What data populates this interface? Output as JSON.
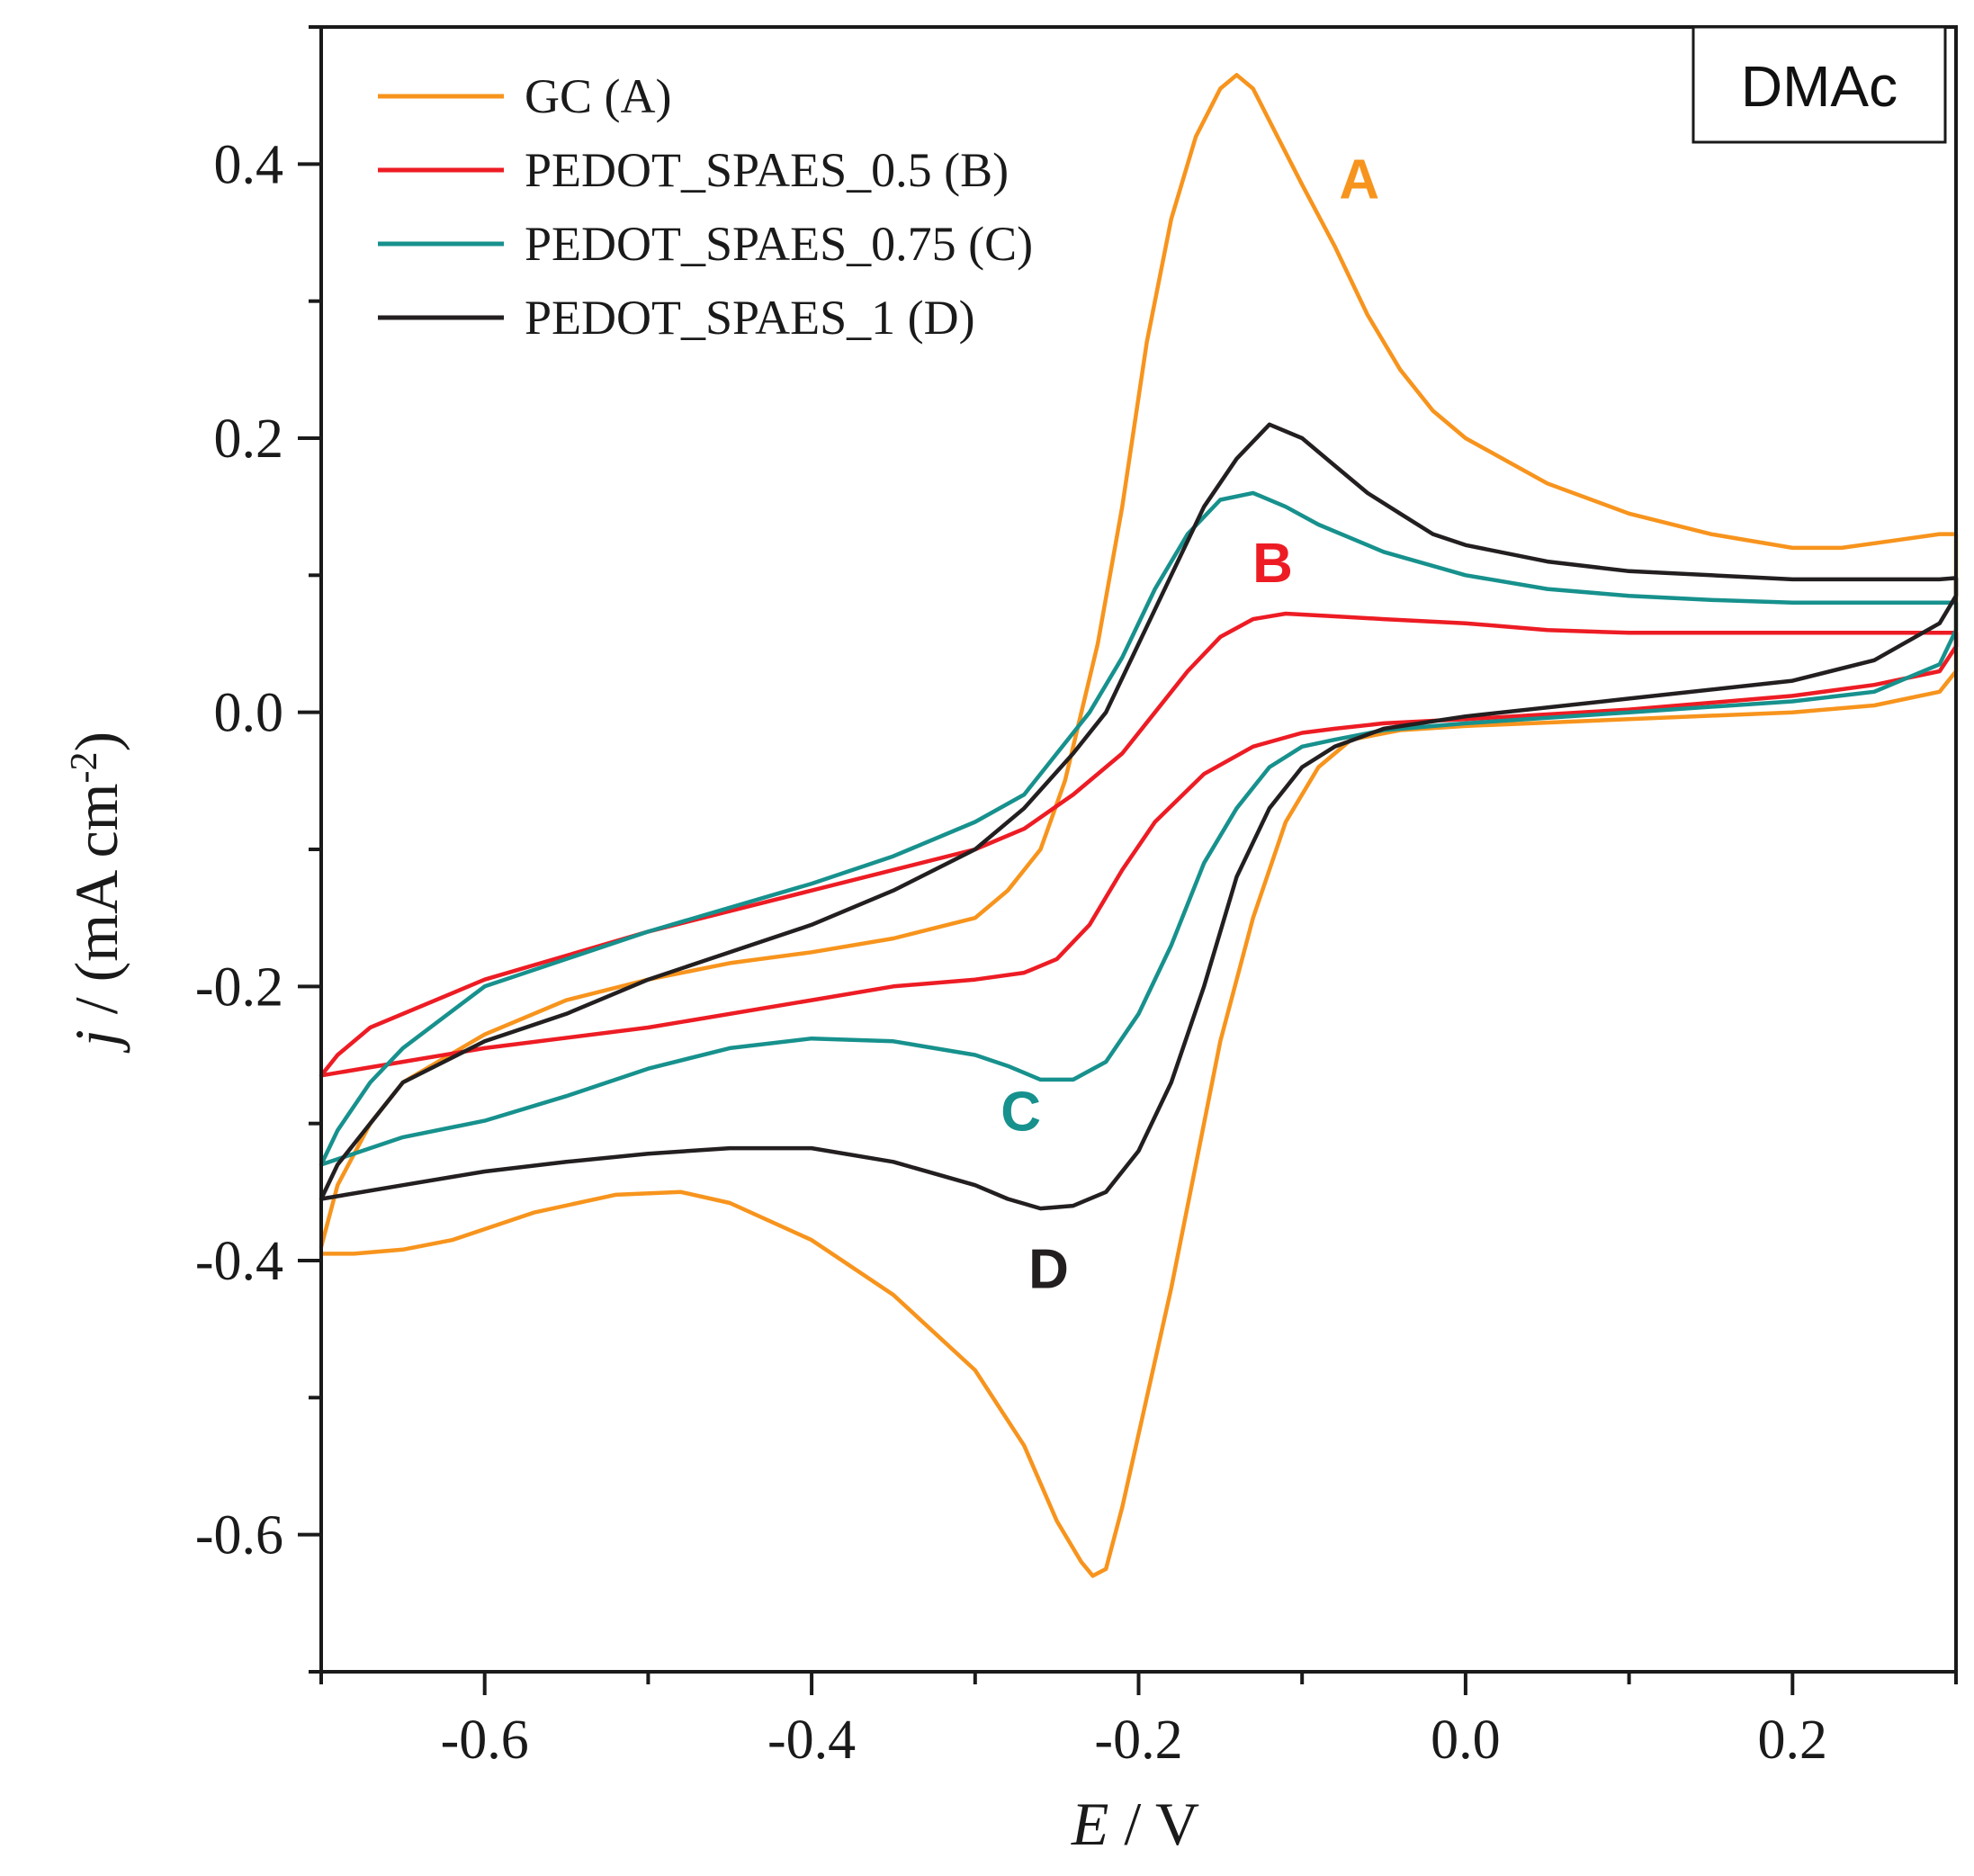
{
  "chart_data": {
    "type": "line",
    "title": "",
    "solvent_label": "DMAc",
    "xlabel": {
      "italic": "E",
      "rest": " / V"
    },
    "ylabel": {
      "italic": "j",
      "rest": " / (mA cm",
      "sup": "-2",
      "close": ")"
    },
    "xlim": [
      -0.7,
      0.3
    ],
    "ylim": [
      -0.7,
      0.5
    ],
    "x_ticks": [
      -0.6,
      -0.4,
      -0.2,
      0.0,
      0.2
    ],
    "x_tick_labels": [
      "-0.6",
      "-0.4",
      "-0.2",
      "0.0",
      "0.2"
    ],
    "y_ticks": [
      -0.6,
      -0.4,
      -0.2,
      0.0,
      0.2,
      0.4
    ],
    "y_tick_labels": [
      "-0.6",
      "-0.4",
      "-0.2",
      "0.0",
      "0.2",
      "0.4"
    ],
    "legend_position": "top-left",
    "series": [
      {
        "name": "GC (A)",
        "short_label": "A",
        "color": "#F7941D",
        "label_at": [
          -0.065,
          0.375
        ],
        "points": [
          [
            -0.7,
            -0.39
          ],
          [
            -0.69,
            -0.345
          ],
          [
            -0.67,
            -0.3
          ],
          [
            -0.65,
            -0.27
          ],
          [
            -0.6,
            -0.235
          ],
          [
            -0.55,
            -0.21
          ],
          [
            -0.5,
            -0.195
          ],
          [
            -0.45,
            -0.183
          ],
          [
            -0.4,
            -0.175
          ],
          [
            -0.35,
            -0.165
          ],
          [
            -0.3,
            -0.15
          ],
          [
            -0.28,
            -0.13
          ],
          [
            -0.26,
            -0.1
          ],
          [
            -0.245,
            -0.05
          ],
          [
            -0.235,
            0.0
          ],
          [
            -0.225,
            0.05
          ],
          [
            -0.21,
            0.15
          ],
          [
            -0.195,
            0.27
          ],
          [
            -0.18,
            0.36
          ],
          [
            -0.165,
            0.42
          ],
          [
            -0.15,
            0.455
          ],
          [
            -0.14,
            0.465
          ],
          [
            -0.13,
            0.455
          ],
          [
            -0.115,
            0.42
          ],
          [
            -0.1,
            0.385
          ],
          [
            -0.08,
            0.34
          ],
          [
            -0.06,
            0.29
          ],
          [
            -0.04,
            0.25
          ],
          [
            -0.02,
            0.22
          ],
          [
            0.0,
            0.2
          ],
          [
            0.05,
            0.167
          ],
          [
            0.1,
            0.145
          ],
          [
            0.15,
            0.13
          ],
          [
            0.2,
            0.12
          ],
          [
            0.23,
            0.12
          ],
          [
            0.26,
            0.125
          ],
          [
            0.29,
            0.13
          ],
          [
            0.3,
            0.13
          ],
          [
            0.3,
            0.03
          ],
          [
            0.29,
            0.015
          ],
          [
            0.25,
            0.005
          ],
          [
            0.2,
            0.0
          ],
          [
            0.1,
            -0.005
          ],
          [
            0.0,
            -0.01
          ],
          [
            -0.04,
            -0.013
          ],
          [
            -0.07,
            -0.02
          ],
          [
            -0.09,
            -0.04
          ],
          [
            -0.11,
            -0.08
          ],
          [
            -0.13,
            -0.15
          ],
          [
            -0.15,
            -0.24
          ],
          [
            -0.165,
            -0.33
          ],
          [
            -0.18,
            -0.42
          ],
          [
            -0.195,
            -0.5
          ],
          [
            -0.21,
            -0.58
          ],
          [
            -0.22,
            -0.625
          ],
          [
            -0.228,
            -0.63
          ],
          [
            -0.235,
            -0.62
          ],
          [
            -0.25,
            -0.59
          ],
          [
            -0.27,
            -0.535
          ],
          [
            -0.3,
            -0.48
          ],
          [
            -0.35,
            -0.425
          ],
          [
            -0.4,
            -0.385
          ],
          [
            -0.45,
            -0.358
          ],
          [
            -0.48,
            -0.35
          ],
          [
            -0.52,
            -0.352
          ],
          [
            -0.57,
            -0.365
          ],
          [
            -0.62,
            -0.385
          ],
          [
            -0.65,
            -0.392
          ],
          [
            -0.68,
            -0.395
          ],
          [
            -0.7,
            -0.395
          ]
        ]
      },
      {
        "name": "PEDOT_SPAES_0.5 (B)",
        "short_label": "B",
        "color": "#ED1C24",
        "label_at": [
          -0.118,
          0.095
        ],
        "points": [
          [
            -0.7,
            -0.265
          ],
          [
            -0.69,
            -0.25
          ],
          [
            -0.67,
            -0.23
          ],
          [
            -0.6,
            -0.195
          ],
          [
            -0.5,
            -0.16
          ],
          [
            -0.4,
            -0.13
          ],
          [
            -0.3,
            -0.1
          ],
          [
            -0.27,
            -0.085
          ],
          [
            -0.24,
            -0.06
          ],
          [
            -0.21,
            -0.03
          ],
          [
            -0.19,
            0.0
          ],
          [
            -0.17,
            0.03
          ],
          [
            -0.15,
            0.055
          ],
          [
            -0.13,
            0.068
          ],
          [
            -0.11,
            0.072
          ],
          [
            -0.08,
            0.07
          ],
          [
            -0.05,
            0.068
          ],
          [
            0.0,
            0.065
          ],
          [
            0.05,
            0.06
          ],
          [
            0.1,
            0.058
          ],
          [
            0.2,
            0.058
          ],
          [
            0.27,
            0.058
          ],
          [
            0.29,
            0.058
          ],
          [
            0.3,
            0.058
          ],
          [
            0.3,
            0.048
          ],
          [
            0.29,
            0.03
          ],
          [
            0.25,
            0.02
          ],
          [
            0.2,
            0.012
          ],
          [
            0.1,
            0.002
          ],
          [
            0.0,
            -0.005
          ],
          [
            -0.05,
            -0.008
          ],
          [
            -0.08,
            -0.012
          ],
          [
            -0.1,
            -0.015
          ],
          [
            -0.13,
            -0.025
          ],
          [
            -0.16,
            -0.045
          ],
          [
            -0.19,
            -0.08
          ],
          [
            -0.21,
            -0.115
          ],
          [
            -0.23,
            -0.155
          ],
          [
            -0.25,
            -0.18
          ],
          [
            -0.27,
            -0.19
          ],
          [
            -0.3,
            -0.195
          ],
          [
            -0.35,
            -0.2
          ],
          [
            -0.4,
            -0.21
          ],
          [
            -0.5,
            -0.23
          ],
          [
            -0.6,
            -0.245
          ],
          [
            -0.65,
            -0.255
          ],
          [
            -0.7,
            -0.265
          ]
        ]
      },
      {
        "name": "PEDOT_SPAES_0.75 (C)",
        "short_label": "C",
        "color": "#17918D",
        "label_at": [
          -0.272,
          -0.305
        ],
        "points": [
          [
            -0.7,
            -0.33
          ],
          [
            -0.69,
            -0.305
          ],
          [
            -0.67,
            -0.27
          ],
          [
            -0.65,
            -0.245
          ],
          [
            -0.6,
            -0.2
          ],
          [
            -0.5,
            -0.16
          ],
          [
            -0.4,
            -0.125
          ],
          [
            -0.35,
            -0.105
          ],
          [
            -0.3,
            -0.08
          ],
          [
            -0.27,
            -0.06
          ],
          [
            -0.25,
            -0.03
          ],
          [
            -0.23,
            0.0
          ],
          [
            -0.21,
            0.04
          ],
          [
            -0.19,
            0.09
          ],
          [
            -0.17,
            0.13
          ],
          [
            -0.15,
            0.155
          ],
          [
            -0.13,
            0.16
          ],
          [
            -0.11,
            0.15
          ],
          [
            -0.09,
            0.137
          ],
          [
            -0.07,
            0.127
          ],
          [
            -0.05,
            0.117
          ],
          [
            0.0,
            0.1
          ],
          [
            0.05,
            0.09
          ],
          [
            0.1,
            0.085
          ],
          [
            0.15,
            0.082
          ],
          [
            0.2,
            0.08
          ],
          [
            0.25,
            0.08
          ],
          [
            0.29,
            0.08
          ],
          [
            0.3,
            0.08
          ],
          [
            0.3,
            0.06
          ],
          [
            0.29,
            0.035
          ],
          [
            0.25,
            0.015
          ],
          [
            0.2,
            0.008
          ],
          [
            0.1,
            0.0
          ],
          [
            0.0,
            -0.008
          ],
          [
            -0.05,
            -0.013
          ],
          [
            -0.08,
            -0.02
          ],
          [
            -0.1,
            -0.025
          ],
          [
            -0.12,
            -0.04
          ],
          [
            -0.14,
            -0.07
          ],
          [
            -0.16,
            -0.11
          ],
          [
            -0.18,
            -0.17
          ],
          [
            -0.2,
            -0.22
          ],
          [
            -0.22,
            -0.255
          ],
          [
            -0.24,
            -0.268
          ],
          [
            -0.26,
            -0.268
          ],
          [
            -0.28,
            -0.258
          ],
          [
            -0.3,
            -0.25
          ],
          [
            -0.35,
            -0.24
          ],
          [
            -0.4,
            -0.238
          ],
          [
            -0.45,
            -0.245
          ],
          [
            -0.5,
            -0.26
          ],
          [
            -0.55,
            -0.28
          ],
          [
            -0.6,
            -0.298
          ],
          [
            -0.65,
            -0.31
          ],
          [
            -0.68,
            -0.322
          ],
          [
            -0.7,
            -0.33
          ]
        ]
      },
      {
        "name": "PEDOT_SPAES_1 (D)",
        "short_label": "D",
        "color": "#231F20",
        "label_at": [
          -0.255,
          -0.42
        ],
        "points": [
          [
            -0.7,
            -0.355
          ],
          [
            -0.69,
            -0.33
          ],
          [
            -0.67,
            -0.3
          ],
          [
            -0.65,
            -0.27
          ],
          [
            -0.6,
            -0.24
          ],
          [
            -0.55,
            -0.22
          ],
          [
            -0.5,
            -0.195
          ],
          [
            -0.45,
            -0.175
          ],
          [
            -0.4,
            -0.155
          ],
          [
            -0.35,
            -0.13
          ],
          [
            -0.3,
            -0.1
          ],
          [
            -0.27,
            -0.07
          ],
          [
            -0.24,
            -0.03
          ],
          [
            -0.22,
            0.0
          ],
          [
            -0.2,
            0.05
          ],
          [
            -0.18,
            0.1
          ],
          [
            -0.16,
            0.15
          ],
          [
            -0.14,
            0.185
          ],
          [
            -0.12,
            0.21
          ],
          [
            -0.1,
            0.2
          ],
          [
            -0.08,
            0.18
          ],
          [
            -0.06,
            0.16
          ],
          [
            -0.04,
            0.145
          ],
          [
            -0.02,
            0.13
          ],
          [
            0.0,
            0.122
          ],
          [
            0.05,
            0.11
          ],
          [
            0.1,
            0.103
          ],
          [
            0.15,
            0.1
          ],
          [
            0.2,
            0.097
          ],
          [
            0.25,
            0.097
          ],
          [
            0.29,
            0.097
          ],
          [
            0.3,
            0.098
          ],
          [
            0.3,
            0.085
          ],
          [
            0.29,
            0.065
          ],
          [
            0.25,
            0.038
          ],
          [
            0.2,
            0.023
          ],
          [
            0.1,
            0.01
          ],
          [
            0.0,
            -0.003
          ],
          [
            -0.05,
            -0.012
          ],
          [
            -0.08,
            -0.025
          ],
          [
            -0.1,
            -0.04
          ],
          [
            -0.12,
            -0.07
          ],
          [
            -0.14,
            -0.12
          ],
          [
            -0.16,
            -0.2
          ],
          [
            -0.18,
            -0.27
          ],
          [
            -0.2,
            -0.32
          ],
          [
            -0.22,
            -0.35
          ],
          [
            -0.24,
            -0.36
          ],
          [
            -0.26,
            -0.362
          ],
          [
            -0.28,
            -0.355
          ],
          [
            -0.3,
            -0.345
          ],
          [
            -0.35,
            -0.328
          ],
          [
            -0.4,
            -0.318
          ],
          [
            -0.45,
            -0.318
          ],
          [
            -0.5,
            -0.322
          ],
          [
            -0.55,
            -0.328
          ],
          [
            -0.6,
            -0.335
          ],
          [
            -0.65,
            -0.345
          ],
          [
            -0.7,
            -0.355
          ]
        ]
      }
    ]
  }
}
